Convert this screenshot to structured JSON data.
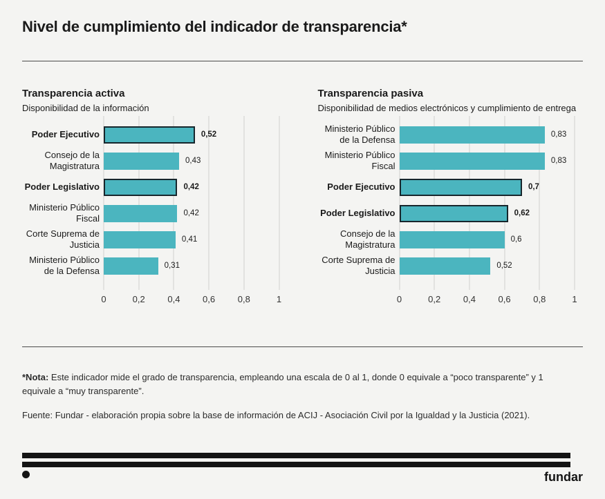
{
  "page": {
    "title": "Nivel de cumplimiento del indicador de transparencia*",
    "note_label": "*Nota:",
    "note_text": " Este indicador mide el grado de transparencia, empleando una escala de 0 al 1, donde 0 equivale a “poco transparente” y 1 equivale a “muy transparente”.",
    "source_text": "Fuente: Fundar - elaboración propia sobre la base de información de ACIJ - Asociación Civil por la Igualdad y la Justicia (2021).",
    "logo_text": "fundar"
  },
  "colors": {
    "background": "#f4f4f2",
    "bar": "#4bb5bf",
    "bar_border": "#17262c",
    "gridline": "#e2e2e0",
    "text": "#1a1a1a"
  },
  "chart_data": [
    {
      "type": "bar",
      "orientation": "horizontal",
      "title": "Transparencia activa",
      "subtitle": "Disponibilidad de la información",
      "categories": [
        "Poder Ejecutivo",
        "Consejo de la Magistratura",
        "Poder Legislativo",
        "Ministerio Público Fiscal",
        "Corte Suprema de Justicia",
        "Ministerio Público de la Defensa"
      ],
      "values": [
        0.52,
        0.43,
        0.42,
        0.42,
        0.41,
        0.31
      ],
      "value_labels": [
        "0,52",
        "0,43",
        "0,42",
        "0,42",
        "0,41",
        "0,31"
      ],
      "highlighted": [
        true,
        false,
        true,
        false,
        false,
        false
      ],
      "xlim": [
        0,
        1
      ],
      "grid": true,
      "tick_values": [
        0,
        0.2,
        0.4,
        0.6,
        0.8,
        1
      ],
      "tick_labels": [
        "0",
        "0,2",
        "0,4",
        "0,6",
        "0,8",
        "1"
      ]
    },
    {
      "type": "bar",
      "orientation": "horizontal",
      "title": "Transparencia pasiva",
      "subtitle": "Disponibilidad de medios electrónicos y cumplimiento de entrega",
      "categories": [
        "Ministerio Público de la Defensa",
        "Ministerio Público Fiscal",
        "Poder Ejecutivo",
        "Poder Legislativo",
        "Consejo de la Magistratura",
        "Corte Suprema de Justicia"
      ],
      "values": [
        0.83,
        0.83,
        0.7,
        0.62,
        0.6,
        0.52
      ],
      "value_labels": [
        "0,83",
        "0,83",
        "0,7",
        "0,62",
        "0,6",
        "0,52"
      ],
      "highlighted": [
        false,
        false,
        true,
        true,
        false,
        false
      ],
      "xlim": [
        0,
        1
      ],
      "grid": true,
      "tick_values": [
        0,
        0.2,
        0.4,
        0.6,
        0.8,
        1
      ],
      "tick_labels": [
        "0",
        "0,2",
        "0,4",
        "0,6",
        "0,8",
        "1"
      ]
    }
  ]
}
